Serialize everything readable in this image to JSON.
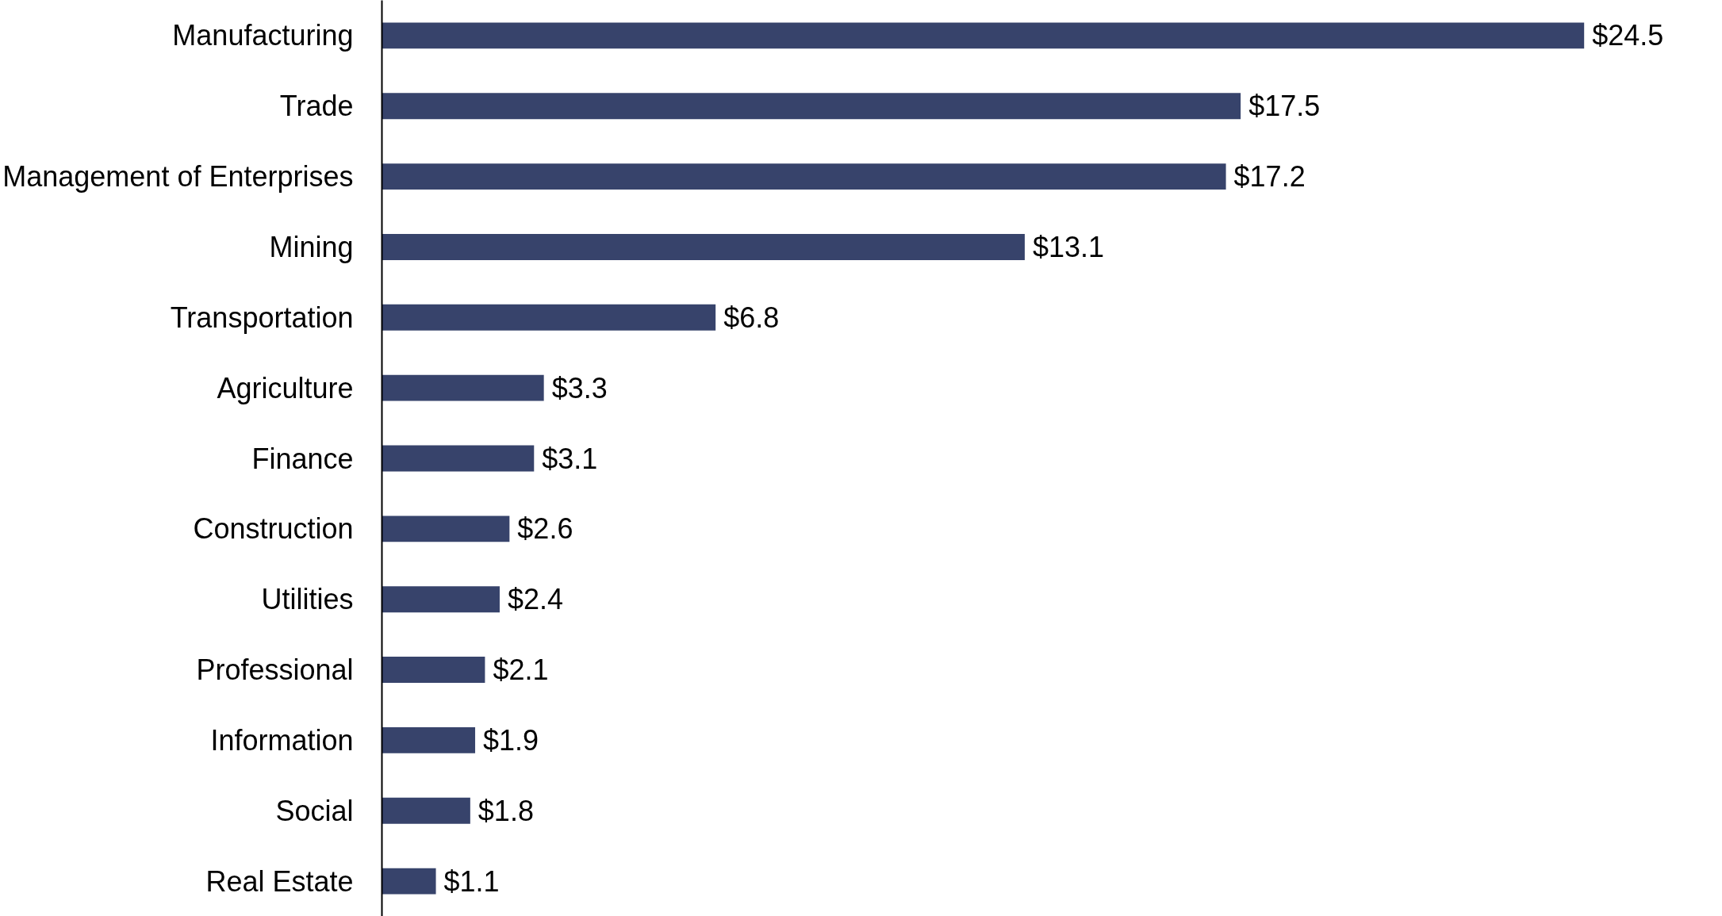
{
  "chart_data": {
    "type": "bar",
    "orientation": "horizontal",
    "color": "#37436b",
    "categories": [
      "Manufacturing",
      "Trade",
      "Management of Enterprises",
      "Mining",
      "Transportation",
      "Agriculture",
      "Finance",
      "Construction",
      "Utilities",
      "Professional",
      "Information",
      "Social",
      "Real Estate"
    ],
    "values": [
      24.5,
      17.5,
      17.2,
      13.1,
      6.8,
      3.3,
      3.1,
      2.6,
      2.4,
      2.1,
      1.9,
      1.8,
      1.1
    ],
    "value_labels": [
      "$24.5",
      "$17.5",
      "$17.2",
      "$13.1",
      "$6.8",
      "$3.3",
      "$3.1",
      "$2.6",
      "$2.4",
      "$2.1",
      "$1.9",
      "$1.8",
      "$1.1"
    ],
    "grid": false
  }
}
